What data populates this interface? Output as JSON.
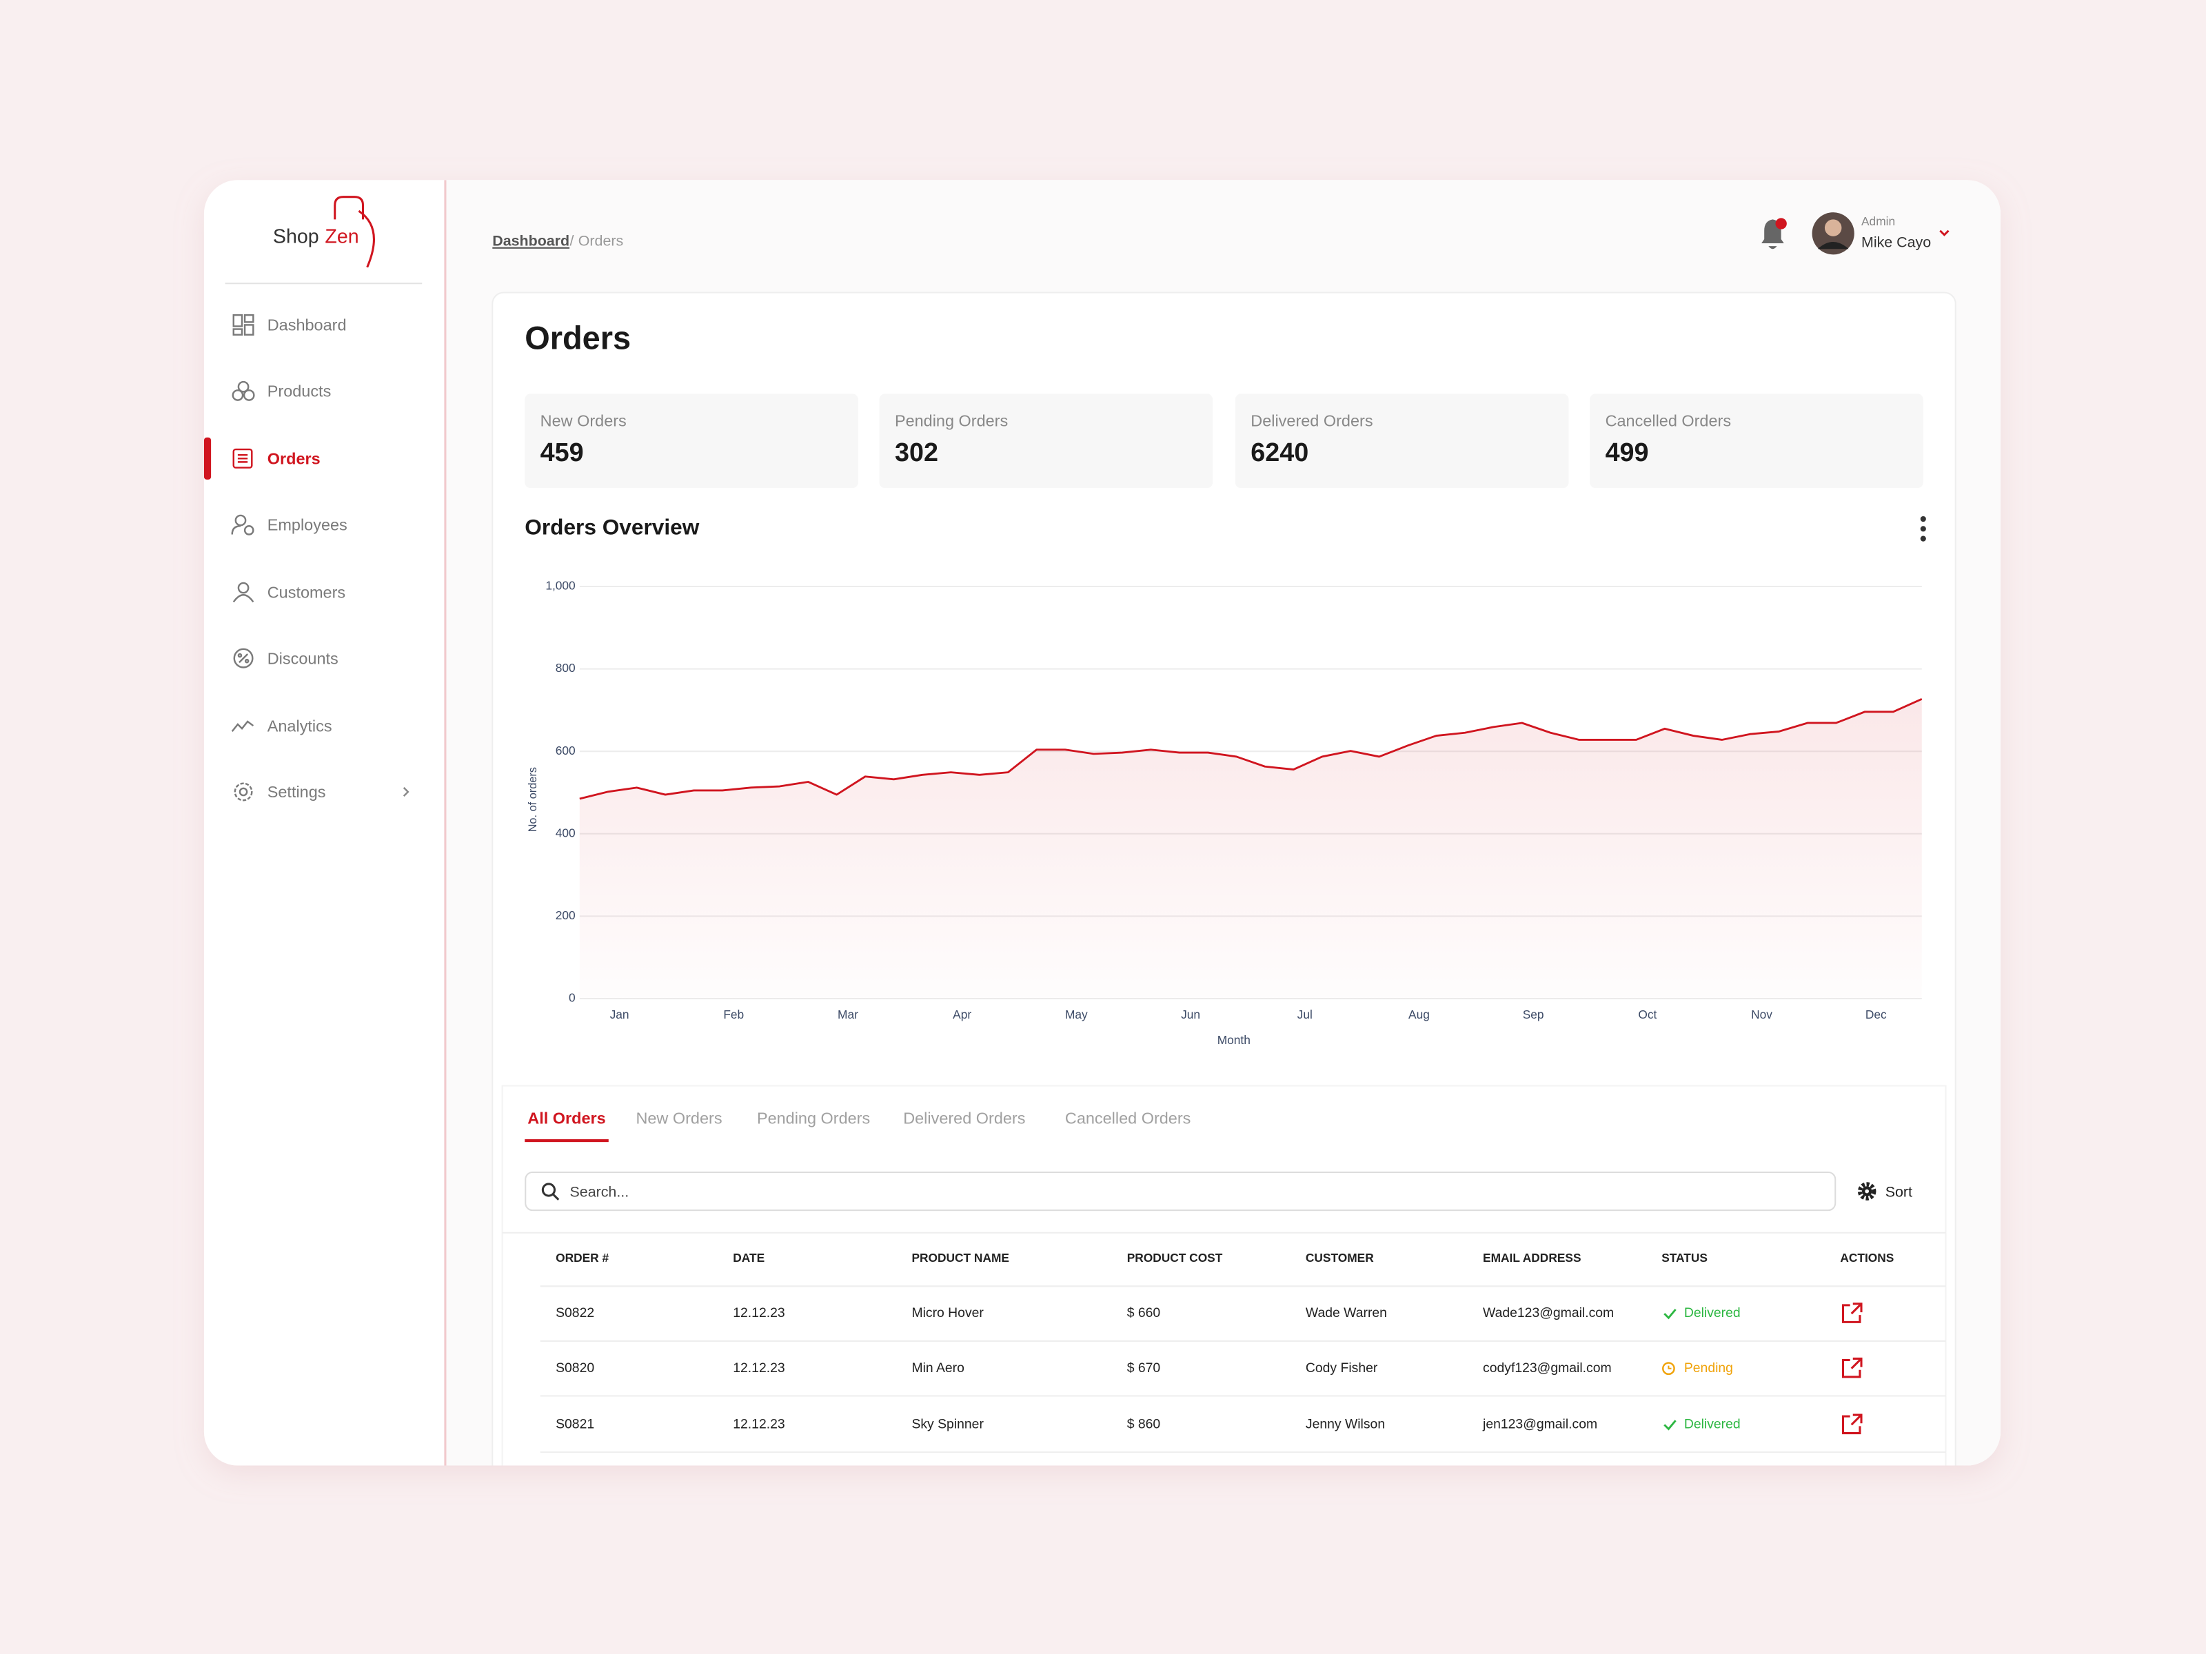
{
  "brand": {
    "first": "Shop",
    "second": "Zen"
  },
  "nav": {
    "items": [
      "Dashboard",
      "Products",
      "Orders",
      "Employees",
      "Customers",
      "Discounts",
      "Analytics",
      "Settings"
    ],
    "active": 2
  },
  "breadcrumb": {
    "parent": "Dashboard",
    "separator": "/",
    "current": "Orders"
  },
  "user": {
    "role": "Admin",
    "name": "Mike Cayo"
  },
  "page_title": "Orders",
  "stats": [
    {
      "label": "New Orders",
      "value": 459
    },
    {
      "label": "Pending Orders",
      "value": 302
    },
    {
      "label": "Delivered Orders",
      "value": 6240
    },
    {
      "label": "Cancelled Orders",
      "value": 499
    }
  ],
  "chart_data": {
    "type": "line",
    "title": "Orders Overview",
    "y_label": "No. of orders",
    "x_label": "Month",
    "categories": [
      null,
      "Jan",
      null,
      null,
      null,
      "Feb",
      null,
      null,
      null,
      "Mar",
      null,
      null,
      null,
      "Apr",
      null,
      null,
      null,
      "May",
      null,
      null,
      null,
      "Jun",
      null,
      null,
      null,
      "Jul",
      null,
      null,
      null,
      "Aug",
      null,
      null,
      null,
      "Sep",
      null,
      null,
      null,
      "Oct",
      null,
      null,
      null,
      "Nov",
      null,
      null,
      null,
      "Dec",
      null,
      null
    ],
    "series": [
      {
        "name": "Orders",
        "color": "#d0151f",
        "values": [
          485,
          502,
          512,
          495,
          505,
          505,
          512,
          515,
          526,
          495,
          539,
          532,
          543,
          549,
          543,
          549,
          604,
          604,
          594,
          597,
          604,
          597,
          597,
          587,
          563,
          556,
          587,
          601,
          587,
          614,
          638,
          645,
          659,
          669,
          645,
          628,
          628,
          628,
          655,
          638,
          628,
          642,
          648,
          669,
          669,
          696,
          696,
          727
        ]
      }
    ],
    "ylim": [
      0,
      1000
    ],
    "yticks": [
      0,
      200,
      400,
      600,
      800,
      {
        "value": 1000,
        "label": "1,000"
      }
    ],
    "grid": true
  },
  "tabs": {
    "items": [
      "All Orders",
      "New Orders",
      "Pending Orders",
      "Delivered  Orders",
      "Cancelled  Orders"
    ],
    "active": 0
  },
  "search": {
    "placeholder": "Search..."
  },
  "sort": {
    "label": "Sort"
  },
  "table": {
    "columns": [
      "ORDER #",
      "DATE",
      "PRODUCT NAME",
      "PRODUCT COST",
      "CUSTOMER",
      "EMAIL ADDRESS",
      "STATUS",
      "ACTIONS"
    ],
    "rows": [
      [
        "S0822",
        "12.12.23",
        "Micro Hover",
        "$ 660",
        "Wade Warren",
        "Wade123@gmail.com",
        "Delivered"
      ],
      [
        "S0820",
        "12.12.23",
        "Min Aero",
        "$ 670",
        "Cody Fisher",
        "codyf123@gmail.com",
        "Pending"
      ],
      [
        "S0821",
        "12.12.23",
        "Sky Spinner",
        "$ 860",
        "Jenny Wilson",
        "jen123@gmail.com",
        "Delivered"
      ]
    ]
  }
}
